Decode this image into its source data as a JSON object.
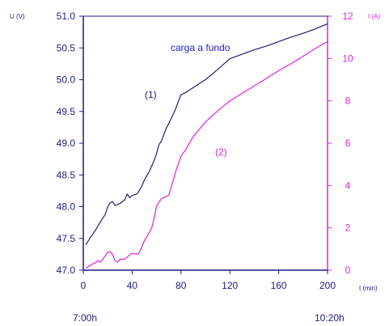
{
  "colors": {
    "axis_left": "#1c1c80",
    "axis_right": "#e020e0",
    "series_voltage": "#20206e",
    "series_current": "#e020e0",
    "annotation_main": "#2020c8"
  },
  "labels": {
    "left_unit": "U (V)",
    "right_unit": "I (A)",
    "x_unit": "t (min)",
    "start_time": "7:00h",
    "end_time": "10:20h",
    "annotation_main": "carga a fundo",
    "label_series_1": "(1)",
    "label_series_2": "(2)"
  },
  "chart_data": {
    "type": "line",
    "x_label": "t (min)",
    "y_left_label": "U (V)",
    "y_right_label": "I (A)",
    "xlim": [
      0,
      200
    ],
    "y_left_lim": [
      47.0,
      51.0
    ],
    "y_right_lim": [
      0,
      12
    ],
    "x_ticks": [
      "0",
      "40",
      "80",
      "120",
      "160",
      "200"
    ],
    "y_left_ticks": [
      "47.0",
      "47.5",
      "48.0",
      "48.5",
      "49.0",
      "49.5",
      "50.0",
      "50.5",
      "51.0"
    ],
    "y_right_ticks": [
      "0",
      "2",
      "4",
      "6",
      "8",
      "10",
      "12"
    ],
    "grid": false,
    "series": [
      {
        "name": "(1)",
        "axis": "left",
        "x": [
          2,
          6,
          10,
          14,
          18,
          20,
          22,
          24,
          26,
          30,
          34,
          36,
          38,
          40,
          44,
          46,
          48,
          50,
          54,
          58,
          60,
          62,
          64,
          66,
          68,
          70,
          72,
          74,
          76,
          78,
          80,
          84,
          88,
          92,
          100,
          110,
          120,
          130,
          140,
          150,
          160,
          170,
          180,
          190,
          200
        ],
        "values": [
          47.4,
          47.52,
          47.63,
          47.76,
          47.88,
          48.0,
          48.06,
          48.08,
          48.02,
          48.05,
          48.11,
          48.2,
          48.14,
          48.18,
          48.2,
          48.26,
          48.33,
          48.42,
          48.55,
          48.73,
          48.84,
          48.98,
          49.03,
          49.14,
          49.24,
          49.31,
          49.39,
          49.47,
          49.56,
          49.67,
          49.76,
          49.8,
          49.85,
          49.9,
          50.0,
          50.16,
          50.33,
          50.4,
          50.47,
          50.53,
          50.6,
          50.67,
          50.73,
          50.8,
          50.88
        ]
      },
      {
        "name": "(2)",
        "axis": "right",
        "x": [
          2,
          6,
          10,
          12,
          14,
          16,
          18,
          20,
          22,
          24,
          26,
          28,
          30,
          34,
          38,
          40,
          44,
          46,
          50,
          54,
          56,
          58,
          60,
          64,
          66,
          68,
          70,
          74,
          76,
          80,
          84,
          90,
          100,
          110,
          120,
          130,
          140,
          150,
          160,
          170,
          180,
          190,
          200
        ],
        "values": [
          0.08,
          0.25,
          0.35,
          0.45,
          0.38,
          0.52,
          0.68,
          0.84,
          0.87,
          0.75,
          0.44,
          0.38,
          0.52,
          0.52,
          0.73,
          0.79,
          0.75,
          0.84,
          1.39,
          1.78,
          2.0,
          2.46,
          3.04,
          3.38,
          3.44,
          3.48,
          3.55,
          4.3,
          4.73,
          5.38,
          5.71,
          6.31,
          7.0,
          7.52,
          8.0,
          8.35,
          8.71,
          9.06,
          9.42,
          9.75,
          10.11,
          10.47,
          10.8
        ]
      }
    ]
  }
}
